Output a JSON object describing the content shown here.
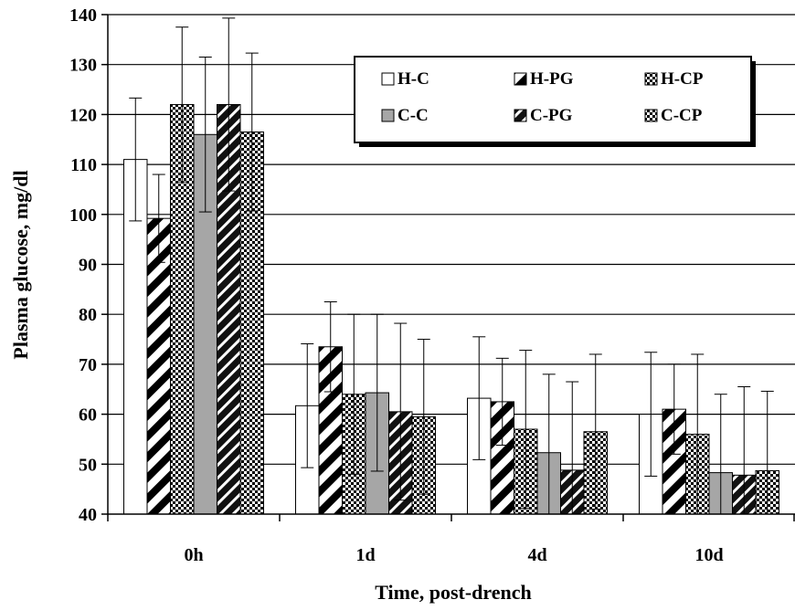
{
  "chart_data": {
    "type": "bar",
    "title": "",
    "xlabel": "Time, post-drench",
    "ylabel": "Plasma glucose, mg/dl",
    "ylim": [
      40,
      140
    ],
    "yticks": [
      40,
      50,
      60,
      70,
      80,
      90,
      100,
      110,
      120,
      130,
      140
    ],
    "grid": true,
    "legend_position": "top-right",
    "categories": [
      "0h",
      "1d",
      "4d",
      "10d"
    ],
    "series": [
      {
        "name": "H-C",
        "fill": "white",
        "values": [
          111,
          61.7,
          63.2,
          60
        ],
        "errors": [
          12.3,
          12.4,
          12.3,
          12.4
        ]
      },
      {
        "name": "H-PG",
        "fill": "diag-wide",
        "values": [
          99.2,
          73.5,
          62.5,
          61
        ],
        "errors": [
          8.8,
          9,
          8.7,
          9
        ]
      },
      {
        "name": "H-CP",
        "fill": "checker",
        "values": [
          122,
          64,
          57,
          56
        ],
        "errors": [
          15.5,
          16,
          15.8,
          16
        ]
      },
      {
        "name": "C-C",
        "fill": "gray",
        "values": [
          116,
          64.3,
          52.3,
          48.3
        ],
        "errors": [
          15.5,
          15.7,
          15.7,
          15.7
        ]
      },
      {
        "name": "C-PG",
        "fill": "diag-dense",
        "values": [
          122,
          60.5,
          48.8,
          47.8
        ],
        "errors": [
          17.3,
          17.7,
          17.7,
          17.7
        ]
      },
      {
        "name": "C-CP",
        "fill": "checker",
        "values": [
          116.5,
          59.5,
          56.5,
          48.7
        ],
        "errors": [
          15.8,
          15.5,
          15.5,
          15.9
        ]
      }
    ]
  }
}
